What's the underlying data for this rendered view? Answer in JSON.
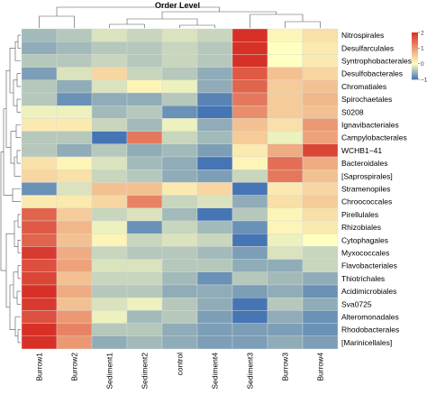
{
  "chart_data": {
    "type": "heatmap",
    "title": "Order Level",
    "columns": [
      "Burrow1",
      "Burrow2",
      "Sediment1",
      "Sediment2",
      "control",
      "Sediment4",
      "Sediment3",
      "Burrow3",
      "Burrow4"
    ],
    "rows": [
      "Nitrospirales",
      "Desulfarculales",
      "Syntrophobacterales",
      "Desulfobacterales",
      "Chromatiales",
      "Spirochaetales",
      "S0208",
      "Ignavibacteriales",
      "Campylobacterales",
      "WCHB1−41",
      "Bacteroidales",
      "[Saprospirales]",
      "Stramenopiles",
      "Chroococcales",
      "Pirellulales",
      "Rhizobiales",
      "Cytophagales",
      "Myxococcales",
      "Flavobacteriales",
      "Thiotrichales",
      "Acidimicrobiales",
      "Sva0725",
      "Alteromonadales",
      "Rhodobacterales",
      "[Marinicellales]"
    ],
    "values": [
      [
        -0.5,
        -0.4,
        -0.2,
        -0.3,
        -0.2,
        -0.3,
        2.3,
        0.1,
        0.3
      ],
      [
        -0.6,
        -0.5,
        -0.4,
        -0.4,
        -0.3,
        -0.4,
        2.3,
        0.0,
        0.2
      ],
      [
        -0.4,
        -0.4,
        -0.3,
        -0.4,
        -0.3,
        -0.4,
        2.3,
        0.0,
        0.2
      ],
      [
        -0.7,
        -0.2,
        0.4,
        -0.3,
        -0.4,
        -0.6,
        1.6,
        0.6,
        0.4
      ],
      [
        -0.4,
        -0.6,
        -0.2,
        0.1,
        -0.1,
        -0.6,
        1.5,
        0.5,
        0.6
      ],
      [
        -0.4,
        -0.8,
        -0.6,
        -0.6,
        -0.4,
        -0.9,
        1.3,
        0.5,
        0.7
      ],
      [
        -0.1,
        -0.1,
        -0.5,
        -0.4,
        -0.8,
        -1.0,
        1.1,
        0.5,
        0.6
      ],
      [
        0.2,
        0.2,
        -0.3,
        -0.5,
        -0.1,
        -0.6,
        0.6,
        0.3,
        1.0
      ],
      [
        -0.4,
        -0.4,
        -1.1,
        1.3,
        -0.3,
        -0.5,
        0.5,
        -0.1,
        0.9
      ],
      [
        -0.4,
        -0.6,
        -0.4,
        -0.6,
        -0.5,
        -0.7,
        0.2,
        0.8,
        1.8
      ],
      [
        0.3,
        0.1,
        -0.2,
        -0.5,
        -0.6,
        -1.1,
        0.1,
        1.4,
        0.8
      ],
      [
        0.4,
        0.3,
        -0.3,
        -0.4,
        -0.6,
        -0.7,
        -0.3,
        1.3,
        0.6
      ],
      [
        -0.8,
        -0.2,
        0.6,
        0.6,
        0.2,
        0.4,
        -1.6,
        0.2,
        0.4
      ],
      [
        0.2,
        0.2,
        0.4,
        1.2,
        -0.3,
        -0.2,
        -0.6,
        0.3,
        0.5
      ],
      [
        1.5,
        0.5,
        -0.3,
        -0.2,
        -0.5,
        -1.1,
        -0.4,
        0.1,
        0.3
      ],
      [
        1.6,
        0.7,
        -0.1,
        -0.8,
        -0.3,
        -0.5,
        -0.8,
        0.1,
        0.2
      ],
      [
        1.5,
        0.6,
        0.1,
        -0.3,
        -0.2,
        -0.3,
        -1.1,
        -0.1,
        0.0
      ],
      [
        1.9,
        0.8,
        -0.3,
        -0.4,
        -0.4,
        -0.5,
        -0.7,
        -0.2,
        -0.3
      ],
      [
        1.7,
        0.9,
        -0.2,
        -0.2,
        -0.4,
        -0.4,
        -0.6,
        -0.6,
        -0.3
      ],
      [
        1.8,
        0.6,
        -0.3,
        -0.3,
        -0.5,
        -0.8,
        -0.4,
        -0.5,
        -0.6
      ],
      [
        2.1,
        0.8,
        -0.4,
        -0.4,
        -0.6,
        -0.6,
        -0.7,
        -0.6,
        -0.8
      ],
      [
        1.9,
        0.6,
        -0.2,
        -0.1,
        -0.4,
        -0.6,
        -1.0,
        -0.4,
        -0.6
      ],
      [
        1.7,
        1.0,
        -0.1,
        -0.5,
        -0.4,
        -0.7,
        -1.0,
        -0.6,
        -0.8
      ],
      [
        2.3,
        1.2,
        -0.4,
        -0.4,
        -0.6,
        -0.7,
        -0.7,
        -0.7,
        -0.8
      ],
      [
        2.3,
        1.0,
        -0.6,
        -0.5,
        -0.6,
        -0.7,
        -0.7,
        -0.6,
        -0.7
      ]
    ],
    "color_scale": {
      "min": -1,
      "max": 2,
      "ticks": [
        2,
        1,
        0,
        -1
      ],
      "colors": [
        "#4575b4",
        "#ffffbf",
        "#d73027"
      ]
    },
    "legend": "top-right",
    "grid": false
  }
}
